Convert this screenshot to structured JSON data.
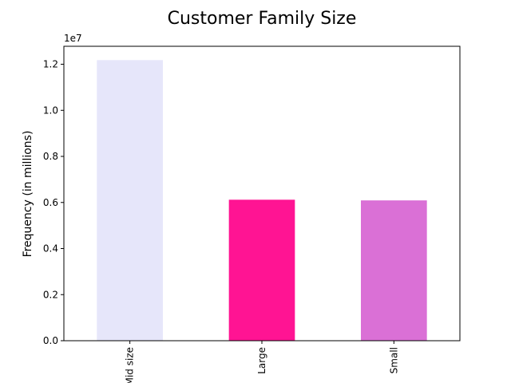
{
  "chart_data": {
    "type": "bar",
    "title": "Customer Family Size",
    "xlabel": "",
    "ylabel": "Frequency (in millions)",
    "axis_offset_label": "1e7",
    "categories": [
      "Mid size",
      "Large",
      "Small"
    ],
    "values": [
      12180000,
      6120000,
      6090000
    ],
    "colors": [
      "#e6e6fa",
      "#ff1493",
      "#da70d6"
    ],
    "ylim": [
      0,
      12780000
    ],
    "yticks": [
      0,
      2000000,
      4000000,
      6000000,
      8000000,
      10000000,
      12000000
    ],
    "ytick_labels": [
      "0.0",
      "0.2",
      "0.4",
      "0.6",
      "0.8",
      "1.0",
      "1.2"
    ],
    "grid": false,
    "legend": "none"
  }
}
